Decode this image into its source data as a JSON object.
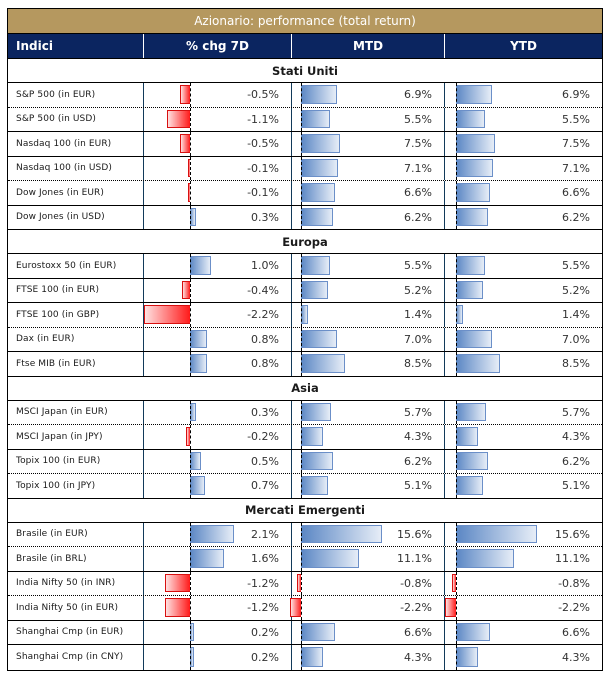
{
  "title": "Azionario: performance (total return)",
  "columns": [
    "Indici",
    "% chg 7D",
    "MTD",
    "YTD"
  ],
  "colors": {
    "title_bg": "#b5985f",
    "header_bg": "#0b2560",
    "positive_bar": "#5a86c4",
    "negative_bar": "#ff1a1a"
  },
  "sections": [
    {
      "name": "Stati Uniti",
      "rows": [
        {
          "label": "S&P 500 (in EUR)",
          "chg7d": -0.5,
          "mtd": 6.9,
          "ytd": 6.9,
          "chg7d_text": "-0.5%",
          "mtd_text": "6.9%",
          "ytd_text": "6.9%"
        },
        {
          "label": "S&P 500 (in USD)",
          "chg7d": -1.1,
          "mtd": 5.5,
          "ytd": 5.5,
          "chg7d_text": "-1.1%",
          "mtd_text": "5.5%",
          "ytd_text": "5.5%"
        },
        {
          "label": "Nasdaq 100 (in EUR)",
          "chg7d": -0.5,
          "mtd": 7.5,
          "ytd": 7.5,
          "chg7d_text": "-0.5%",
          "mtd_text": "7.5%",
          "ytd_text": "7.5%"
        },
        {
          "label": "Nasdaq 100 (in USD)",
          "chg7d": -0.1,
          "mtd": 7.1,
          "ytd": 7.1,
          "chg7d_text": "-0.1%",
          "mtd_text": "7.1%",
          "ytd_text": "7.1%"
        },
        {
          "label": "Dow Jones (in EUR)",
          "chg7d": -0.1,
          "mtd": 6.6,
          "ytd": 6.6,
          "chg7d_text": "-0.1%",
          "mtd_text": "6.6%",
          "ytd_text": "6.6%"
        },
        {
          "label": "Dow Jones (in USD)",
          "chg7d": 0.3,
          "mtd": 6.2,
          "ytd": 6.2,
          "chg7d_text": "0.3%",
          "mtd_text": "6.2%",
          "ytd_text": "6.2%"
        }
      ]
    },
    {
      "name": "Europa",
      "rows": [
        {
          "label": "Eurostoxx 50 (in EUR)",
          "chg7d": 1.0,
          "mtd": 5.5,
          "ytd": 5.5,
          "chg7d_text": "1.0%",
          "mtd_text": "5.5%",
          "ytd_text": "5.5%"
        },
        {
          "label": "FTSE 100 (in EUR)",
          "chg7d": -0.4,
          "mtd": 5.2,
          "ytd": 5.2,
          "chg7d_text": "-0.4%",
          "mtd_text": "5.2%",
          "ytd_text": "5.2%"
        },
        {
          "label": "FTSE 100 (in GBP)",
          "chg7d": -2.2,
          "mtd": 1.4,
          "ytd": 1.4,
          "chg7d_text": "-2.2%",
          "mtd_text": "1.4%",
          "ytd_text": "1.4%"
        },
        {
          "label": "Dax (in EUR)",
          "chg7d": 0.8,
          "mtd": 7.0,
          "ytd": 7.0,
          "chg7d_text": "0.8%",
          "mtd_text": "7.0%",
          "ytd_text": "7.0%"
        },
        {
          "label": "Ftse MIB (in EUR)",
          "chg7d": 0.8,
          "mtd": 8.5,
          "ytd": 8.5,
          "chg7d_text": "0.8%",
          "mtd_text": "8.5%",
          "ytd_text": "8.5%"
        }
      ]
    },
    {
      "name": "Asia",
      "rows": [
        {
          "label": "MSCI Japan (in EUR)",
          "chg7d": 0.3,
          "mtd": 5.7,
          "ytd": 5.7,
          "chg7d_text": "0.3%",
          "mtd_text": "5.7%",
          "ytd_text": "5.7%"
        },
        {
          "label": "MSCI Japan (in JPY)",
          "chg7d": -0.2,
          "mtd": 4.3,
          "ytd": 4.3,
          "chg7d_text": "-0.2%",
          "mtd_text": "4.3%",
          "ytd_text": "4.3%"
        },
        {
          "label": "Topix 100 (in EUR)",
          "chg7d": 0.5,
          "mtd": 6.2,
          "ytd": 6.2,
          "chg7d_text": "0.5%",
          "mtd_text": "6.2%",
          "ytd_text": "6.2%"
        },
        {
          "label": "Topix 100 (in JPY)",
          "chg7d": 0.7,
          "mtd": 5.1,
          "ytd": 5.1,
          "chg7d_text": "0.7%",
          "mtd_text": "5.1%",
          "ytd_text": "5.1%"
        }
      ]
    },
    {
      "name": "Mercati Emergenti",
      "rows": [
        {
          "label": "Brasile (in EUR)",
          "chg7d": 2.1,
          "mtd": 15.6,
          "ytd": 15.6,
          "chg7d_text": "2.1%",
          "mtd_text": "15.6%",
          "ytd_text": "15.6%"
        },
        {
          "label": "Brasile (in BRL)",
          "chg7d": 1.6,
          "mtd": 11.1,
          "ytd": 11.1,
          "chg7d_text": "1.6%",
          "mtd_text": "11.1%",
          "ytd_text": "11.1%"
        },
        {
          "label": "India Nifty 50 (in INR)",
          "chg7d": -1.2,
          "mtd": -0.8,
          "ytd": -0.8,
          "chg7d_text": "-1.2%",
          "mtd_text": "-0.8%",
          "ytd_text": "-0.8%"
        },
        {
          "label": "India Nifty 50 (in EUR)",
          "chg7d": -1.2,
          "mtd": -2.2,
          "ytd": -2.2,
          "chg7d_text": "-1.2%",
          "mtd_text": "-2.2%",
          "ytd_text": "-2.2%"
        },
        {
          "label": "Shanghai Cmp (in EUR)",
          "chg7d": 0.2,
          "mtd": 6.6,
          "ytd": 6.6,
          "chg7d_text": "0.2%",
          "mtd_text": "6.6%",
          "ytd_text": "6.6%"
        },
        {
          "label": "Shanghai Cmp (in CNY)",
          "chg7d": 0.2,
          "mtd": 4.3,
          "ytd": 4.3,
          "chg7d_text": "0.2%",
          "mtd_text": "4.3%",
          "ytd_text": "4.3%"
        }
      ]
    }
  ]
}
